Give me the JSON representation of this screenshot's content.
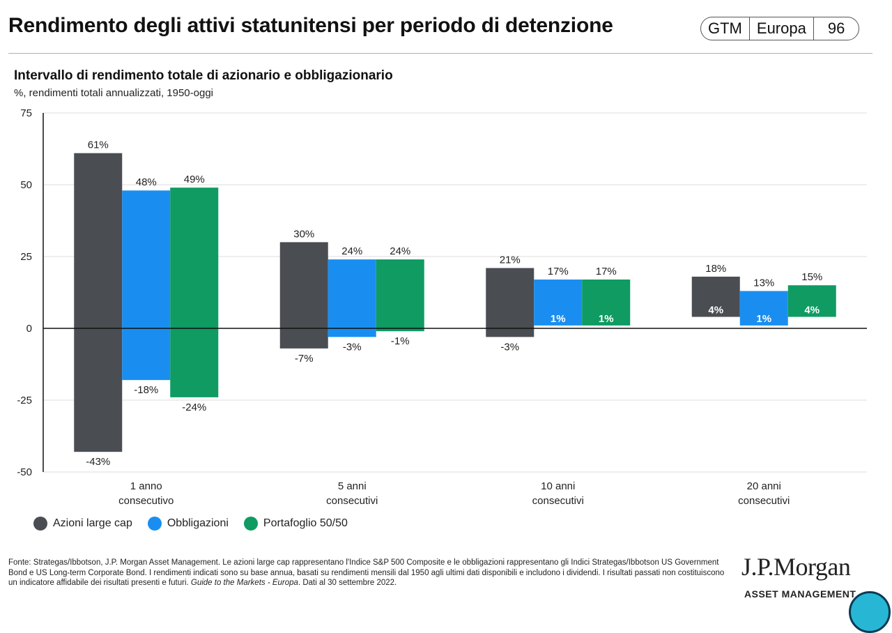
{
  "header": {
    "title": "Rendimento degli attivi statunitensi per periodo di detenzione",
    "badge": {
      "gtm": "GTM",
      "region": "Europa",
      "page": "96"
    }
  },
  "chart_data": {
    "type": "bar",
    "variant": "floating-range",
    "title": "Intervallo di rendimento totale di azionario e obbligazionario",
    "subtitle": "%, rendimenti totali annualizzati, 1950-oggi",
    "ylim": [
      -50,
      75
    ],
    "yticks": [
      "75",
      "50",
      "25",
      "0",
      "-25",
      "-50"
    ],
    "ytick_values": [
      75,
      50,
      25,
      0,
      -25,
      -50
    ],
    "grid": true,
    "legend_position": "bottom-left",
    "categories": [
      [
        "1 anno",
        "consecutivo"
      ],
      [
        "5 anni",
        "consecutivi"
      ],
      [
        "10 anni",
        "consecutivi"
      ],
      [
        "20 anni",
        "consecutivi"
      ]
    ],
    "series": [
      {
        "name": "Azioni large cap",
        "color": "#4a4d52",
        "max": [
          61,
          30,
          21,
          18
        ],
        "min": [
          -43,
          -7,
          -3,
          4
        ],
        "max_labels": [
          "61%",
          "30%",
          "21%",
          "18%"
        ],
        "min_labels": [
          "-43%",
          "-7%",
          "-3%",
          "4%"
        ]
      },
      {
        "name": "Obbligazioni",
        "color": "#1a8ef0",
        "max": [
          48,
          24,
          17,
          13
        ],
        "min": [
          -18,
          -3,
          1,
          1
        ],
        "max_labels": [
          "48%",
          "24%",
          "17%",
          "13%"
        ],
        "min_labels": [
          "-18%",
          "-3%",
          "1%",
          "1%"
        ]
      },
      {
        "name": "Portafoglio 50/50",
        "color": "#0f9b62",
        "max": [
          49,
          24,
          17,
          15
        ],
        "min": [
          -24,
          -1,
          1,
          4
        ],
        "max_labels": [
          "49%",
          "24%",
          "17%",
          "15%"
        ],
        "min_labels": [
          "-24%",
          "-1%",
          "1%",
          "4%"
        ]
      }
    ]
  },
  "footnote": {
    "text": "Fonte: Strategas/Ibbotson, J.P. Morgan Asset Management. Le azioni large cap rappresentano l'Indice S&P 500 Composite e le obbligazioni rappresentano gli Indici Strategas/Ibbotson US Government Bond e US Long-term Corporate Bond. I rendimenti indicati sono su base annua, basati su rendimenti mensili dal 1950 agli ultimi dati disponibili e includono i dividendi. I risultati passati non costituiscono un indicatore affidabile dei risultati presenti e futuri. ",
    "guide": "Guide to the Markets - Europa",
    "date": ". Dati al 30 settembre 2022."
  },
  "brand": {
    "logo": "J.P.Morgan",
    "sub": "ASSET MANAGEMENT"
  }
}
